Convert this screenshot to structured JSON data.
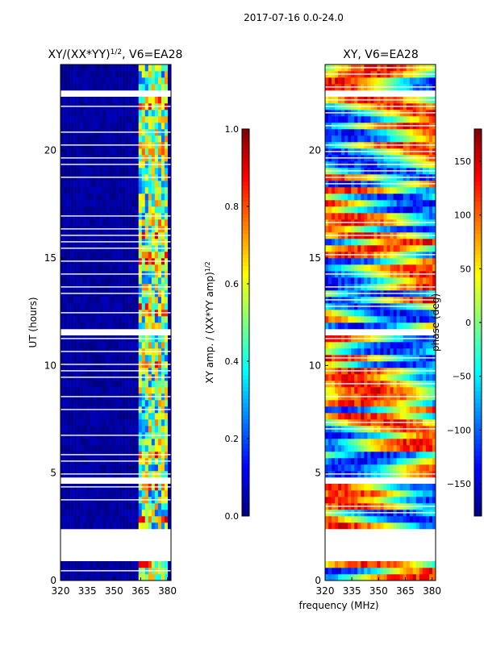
{
  "suptitle": "2017-07-16 0.0-24.0",
  "colors": {
    "jet": [
      "#00007f",
      "#0000ff",
      "#007fff",
      "#00ffff",
      "#7fff7f",
      "#ffff00",
      "#ff7f00",
      "#ff0000",
      "#7f0000"
    ],
    "frame": "#000000",
    "background": "#ffffff"
  },
  "chart_data": [
    {
      "type": "heatmap",
      "title_main": "XY/(XX*YY)",
      "title_exp": "1/2",
      "title_suffix": ", V6=EA28",
      "xlabel": "",
      "ylabel": "UT (hours)",
      "xlim": [
        320,
        382
      ],
      "ylim": [
        0,
        24
      ],
      "xticks": [
        320,
        335,
        350,
        365,
        380
      ],
      "yticks": [
        0,
        5,
        10,
        15,
        20
      ],
      "colorbar": {
        "label_main": "XY amp. / (XX*YY amp)",
        "label_exp": "1/2",
        "range": [
          0.0,
          1.0
        ],
        "ticks": [
          "0.0",
          "0.2",
          "0.4",
          "0.6",
          "0.8",
          "1.0"
        ]
      },
      "empty_ut_ranges": [
        [
          1.0,
          2.3
        ],
        [
          4.4,
          4.8
        ],
        [
          11.4,
          11.7
        ],
        [
          14.6,
          14.8
        ],
        [
          18.8,
          18.9
        ],
        [
          22.6,
          22.7
        ]
      ],
      "bright_band_mhz": [
        364,
        381
      ],
      "dominant_value": 0.0
    },
    {
      "type": "heatmap",
      "title_main": "XY, V6=EA28",
      "xlabel": "frequency (MHz)",
      "ylabel": "",
      "xlim": [
        320,
        382
      ],
      "ylim": [
        0,
        24
      ],
      "xticks": [
        320,
        335,
        350,
        365,
        380
      ],
      "yticks": [
        0,
        5,
        10,
        15,
        20
      ],
      "colorbar": {
        "label": "phase (deg)",
        "range": [
          -180,
          180
        ],
        "ticks": [
          "−150",
          "−100",
          "−50",
          "0",
          "50",
          "100",
          "150"
        ]
      },
      "empty_ut_ranges": [
        [
          1.0,
          2.3
        ],
        [
          4.4,
          4.8
        ],
        [
          11.4,
          11.7
        ],
        [
          14.6,
          14.8
        ],
        [
          18.8,
          18.9
        ],
        [
          22.6,
          22.7
        ]
      ],
      "value_range": [
        -180,
        180
      ]
    }
  ]
}
